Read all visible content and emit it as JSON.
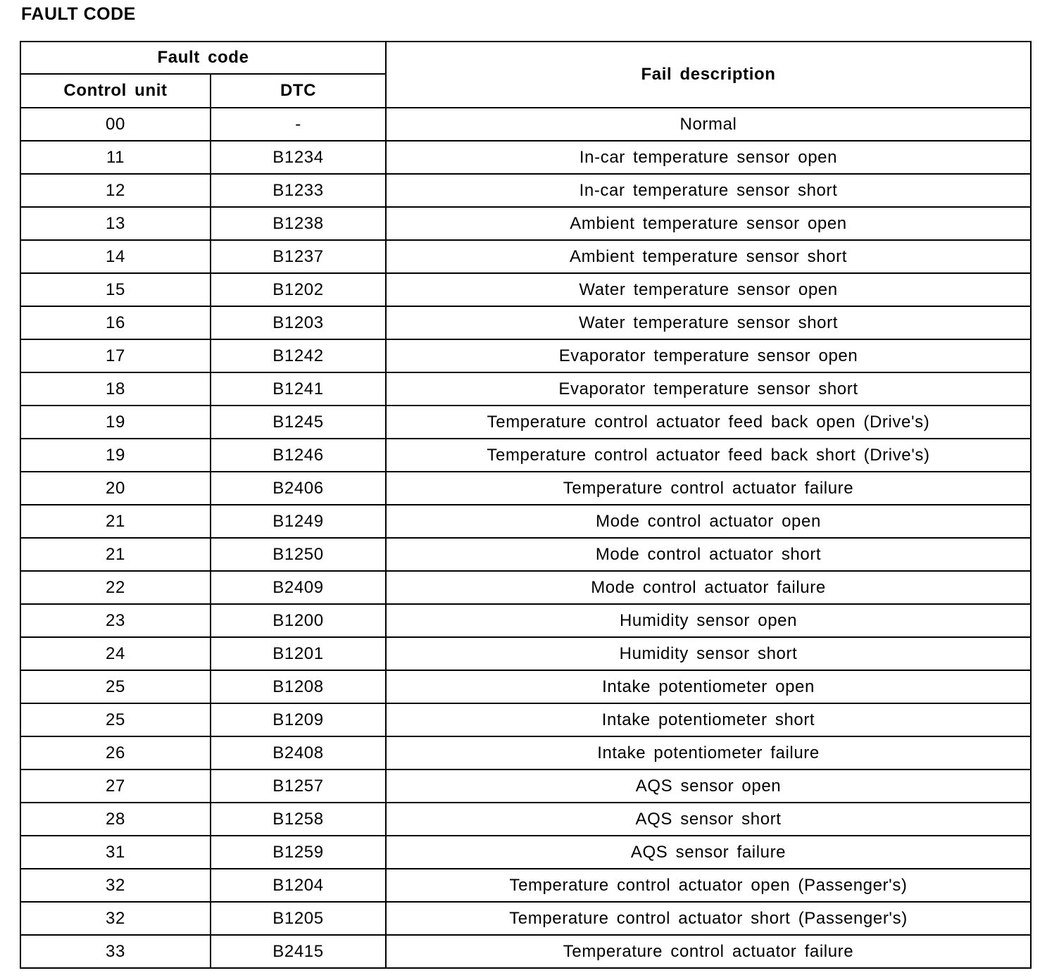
{
  "title": "FAULT CODE",
  "headers": {
    "fault_code": "Fault code",
    "control_unit": "Control unit",
    "dtc": "DTC",
    "fail_description": "Fail description"
  },
  "rows": [
    {
      "control_unit": "00",
      "dtc": "-",
      "description": "Normal"
    },
    {
      "control_unit": "11",
      "dtc": "B1234",
      "description": "In-car temperature sensor open"
    },
    {
      "control_unit": "12",
      "dtc": "B1233",
      "description": "In-car temperature sensor short"
    },
    {
      "control_unit": "13",
      "dtc": "B1238",
      "description": "Ambient temperature sensor open"
    },
    {
      "control_unit": "14",
      "dtc": "B1237",
      "description": "Ambient temperature sensor short"
    },
    {
      "control_unit": "15",
      "dtc": "B1202",
      "description": "Water temperature sensor open"
    },
    {
      "control_unit": "16",
      "dtc": "B1203",
      "description": "Water temperature sensor short"
    },
    {
      "control_unit": "17",
      "dtc": "B1242",
      "description": "Evaporator temperature sensor open"
    },
    {
      "control_unit": "18",
      "dtc": "B1241",
      "description": "Evaporator temperature sensor short"
    },
    {
      "control_unit": "19",
      "dtc": "B1245",
      "description": "Temperature control actuator feed back open (Drive's)"
    },
    {
      "control_unit": "19",
      "dtc": "B1246",
      "description": "Temperature control actuator feed back short (Drive's)"
    },
    {
      "control_unit": "20",
      "dtc": "B2406",
      "description": "Temperature control actuator failure"
    },
    {
      "control_unit": "21",
      "dtc": "B1249",
      "description": "Mode control actuator open"
    },
    {
      "control_unit": "21",
      "dtc": "B1250",
      "description": "Mode control actuator short"
    },
    {
      "control_unit": "22",
      "dtc": "B2409",
      "description": "Mode control actuator failure"
    },
    {
      "control_unit": "23",
      "dtc": "B1200",
      "description": "Humidity sensor open"
    },
    {
      "control_unit": "24",
      "dtc": "B1201",
      "description": "Humidity sensor short"
    },
    {
      "control_unit": "25",
      "dtc": "B1208",
      "description": "Intake potentiometer open"
    },
    {
      "control_unit": "25",
      "dtc": "B1209",
      "description": "Intake potentiometer short"
    },
    {
      "control_unit": "26",
      "dtc": "B2408",
      "description": "Intake potentiometer failure"
    },
    {
      "control_unit": "27",
      "dtc": "B1257",
      "description": "AQS sensor open"
    },
    {
      "control_unit": "28",
      "dtc": "B1258",
      "description": "AQS sensor short"
    },
    {
      "control_unit": "31",
      "dtc": "B1259",
      "description": "AQS sensor failure"
    },
    {
      "control_unit": "32",
      "dtc": "B1204",
      "description": "Temperature control actuator open (Passenger's)"
    },
    {
      "control_unit": "32",
      "dtc": "B1205",
      "description": "Temperature control actuator short (Passenger's)"
    },
    {
      "control_unit": "33",
      "dtc": "B2415",
      "description": "Temperature control actuator failure"
    }
  ]
}
